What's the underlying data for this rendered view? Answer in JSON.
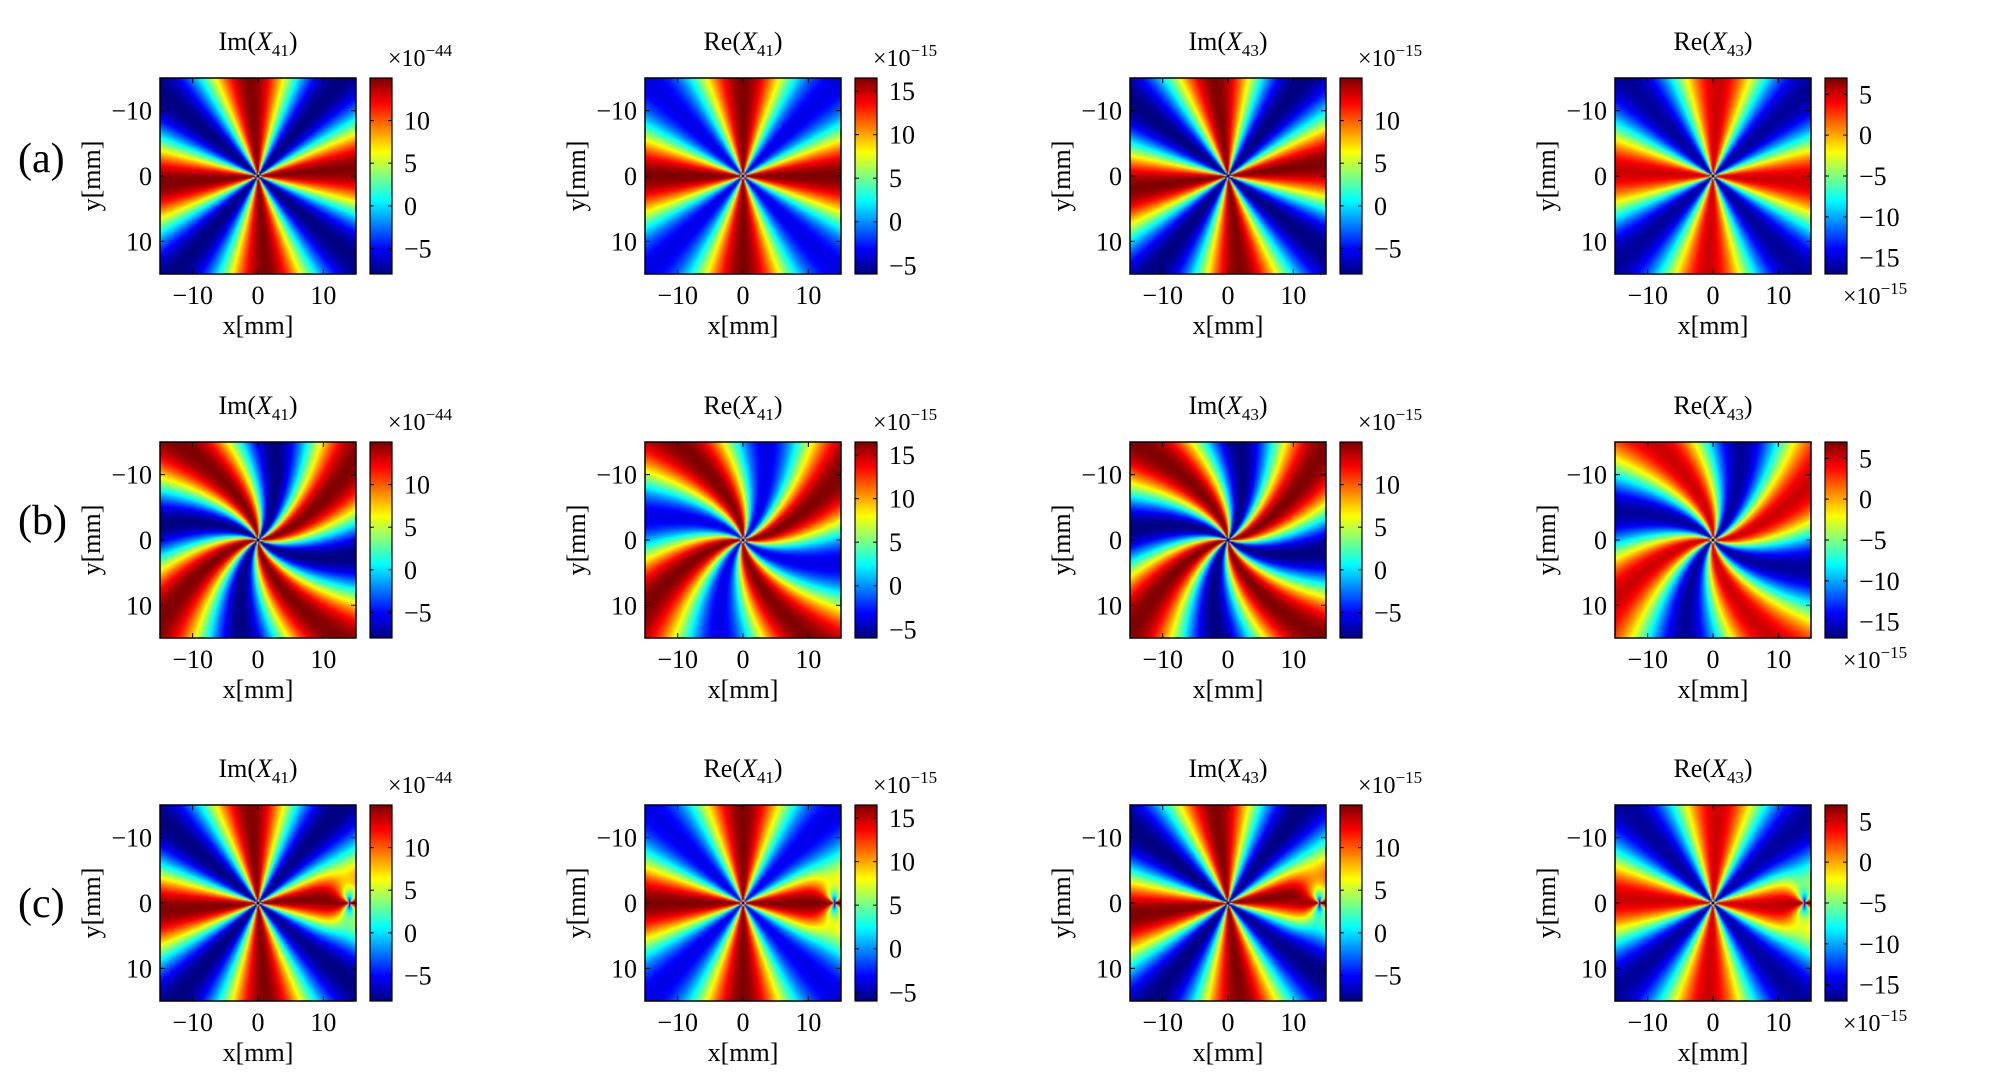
{
  "chart_data": {
    "type": "heatmap",
    "colormap": "jet",
    "row_labels": [
      "(a)",
      "(b)",
      "(c)"
    ],
    "xlabel": "x[mm]",
    "ylabel": "y[mm]",
    "x_ticks": [
      "−10",
      "0",
      "10"
    ],
    "y_ticks": [
      "−10",
      "0",
      "10"
    ],
    "xlim": [
      -15,
      15
    ],
    "ylim": [
      -15,
      15
    ],
    "columns": [
      {
        "title_prefix": "Im(",
        "title_var": "X",
        "title_sub": "41",
        "title_suffix": ")",
        "scale": "×10",
        "scale_exp": "−44",
        "scale_position": "top",
        "clim": [
          -8,
          15
        ],
        "cbar_ticks": [
          "10",
          "5",
          "0",
          "−5"
        ],
        "cbar_values": [
          10,
          5,
          0,
          -5
        ],
        "pattern": "im41"
      },
      {
        "title_prefix": "Re(",
        "title_var": "X",
        "title_sub": "41",
        "title_suffix": ")",
        "scale": "×10",
        "scale_exp": "−15",
        "scale_position": "top",
        "clim": [
          -6,
          16.5
        ],
        "cbar_ticks": [
          "15",
          "10",
          "5",
          "0",
          "−5"
        ],
        "cbar_values": [
          15,
          10,
          5,
          0,
          -5
        ],
        "pattern": "re41"
      },
      {
        "title_prefix": "Im(",
        "title_var": "X",
        "title_sub": "43",
        "title_suffix": ")",
        "scale": "×10",
        "scale_exp": "−15",
        "scale_position": "top",
        "clim": [
          -8,
          15
        ],
        "cbar_ticks": [
          "10",
          "5",
          "0",
          "−5"
        ],
        "cbar_values": [
          10,
          5,
          0,
          -5
        ],
        "pattern": "im43"
      },
      {
        "title_prefix": "Re(",
        "title_var": "X",
        "title_sub": "43",
        "title_suffix": ")",
        "scale": "×10",
        "scale_exp": "−15",
        "scale_position": "bottom",
        "clim": [
          -17,
          7
        ],
        "cbar_ticks": [
          "5",
          "0",
          "−5",
          "−10",
          "−15"
        ],
        "cbar_values": [
          5,
          0,
          -5,
          -10,
          -15
        ],
        "pattern": "re43"
      }
    ],
    "rows": [
      {
        "label": "(a)",
        "secondary_singularity": false,
        "twist": 0.0
      },
      {
        "label": "(b)",
        "secondary_singularity": false,
        "twist": 0.35
      },
      {
        "label": "(c)",
        "secondary_singularity": true,
        "twist": 0.0,
        "secondary_x": 14
      }
    ]
  }
}
